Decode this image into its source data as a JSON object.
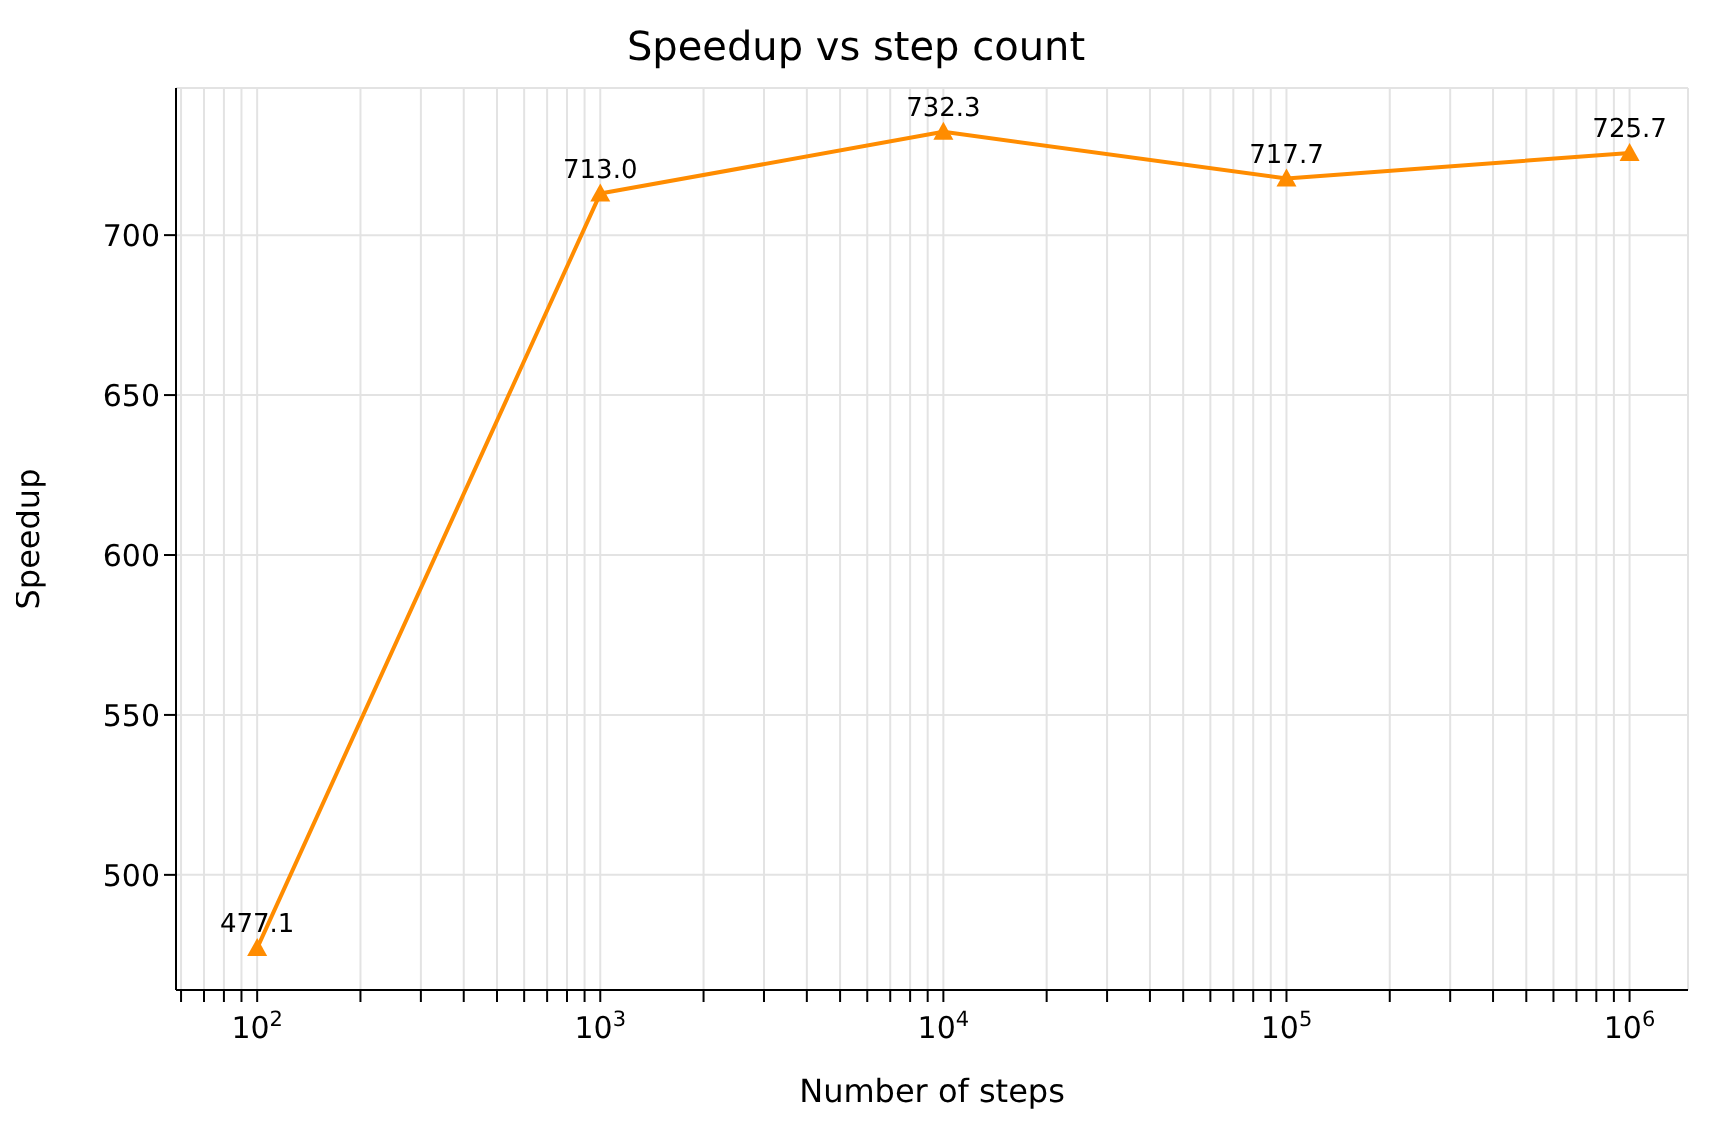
{
  "chart_data": {
    "type": "line",
    "title": "Speedup vs step count",
    "xlabel": "Number of steps",
    "ylabel": "Speedup",
    "log": "x",
    "x": [
      100,
      1000,
      10000,
      100000,
      1000000
    ],
    "series": [
      {
        "color": "#ff8c00",
        "values": [
          477.1,
          713.0,
          732.3,
          717.7,
          725.7
        ],
        "value_labels": [
          "477.1",
          "713.0",
          "732.3",
          "717.7",
          "725.7"
        ]
      }
    ],
    "marker": "triangle",
    "line_style": "solid",
    "grid": true,
    "xlim": [
      58,
      1480000
    ],
    "ylim": [
      464,
      746
    ],
    "yticks": [
      500,
      550,
      600,
      650,
      700
    ],
    "xticks": [
      {
        "value": 60,
        "label": null
      },
      {
        "value": 70,
        "label": null
      },
      {
        "value": 80,
        "label": null
      },
      {
        "value": 90,
        "label": null
      },
      {
        "value": 100,
        "label": "10$^{2}$"
      },
      {
        "value": 200,
        "label": null
      },
      {
        "value": 300,
        "label": null
      },
      {
        "value": 400,
        "label": null
      },
      {
        "value": 500,
        "label": null
      },
      {
        "value": 600,
        "label": null
      },
      {
        "value": 700,
        "label": null
      },
      {
        "value": 800,
        "label": null
      },
      {
        "value": 900,
        "label": null
      },
      {
        "value": 1000,
        "label": "10$^{3}$"
      },
      {
        "value": 2000,
        "label": null
      },
      {
        "value": 3000,
        "label": null
      },
      {
        "value": 4000,
        "label": null
      },
      {
        "value": 5000,
        "label": null
      },
      {
        "value": 6000,
        "label": null
      },
      {
        "value": 7000,
        "label": null
      },
      {
        "value": 8000,
        "label": null
      },
      {
        "value": 9000,
        "label": null
      },
      {
        "value": 10000,
        "label": "10$^{4}$"
      },
      {
        "value": 20000,
        "label": null
      },
      {
        "value": 30000,
        "label": null
      },
      {
        "value": 40000,
        "label": null
      },
      {
        "value": 50000,
        "label": null
      },
      {
        "value": 60000,
        "label": null
      },
      {
        "value": 70000,
        "label": null
      },
      {
        "value": 80000,
        "label": null
      },
      {
        "value": 90000,
        "label": null
      },
      {
        "value": 100000,
        "label": "10$^{5}$"
      },
      {
        "value": 200000,
        "label": null
      },
      {
        "value": 300000,
        "label": null
      },
      {
        "value": 400000,
        "label": null
      },
      {
        "value": 500000,
        "label": null
      },
      {
        "value": 600000,
        "label": null
      },
      {
        "value": 700000,
        "label": null
      },
      {
        "value": 800000,
        "label": null
      },
      {
        "value": 900000,
        "label": null
      },
      {
        "value": 1000000,
        "label": "10$^{6}$"
      }
    ]
  }
}
